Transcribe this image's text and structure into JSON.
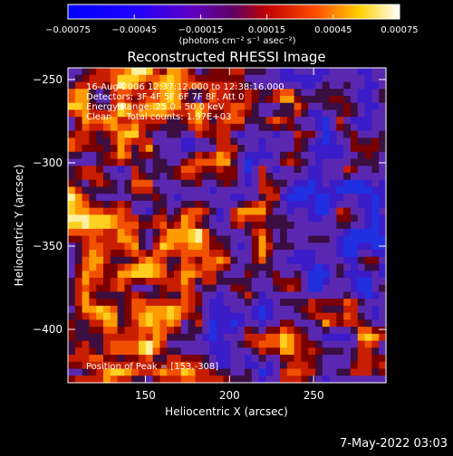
{
  "chart_data": {
    "type": "heatmap",
    "title": "Reconstructed RHESSI Image",
    "xlabel": "Heliocentric X (arcsec)",
    "ylabel": "Heliocentric Y (arcsec)",
    "xlim": [
      104,
      293
    ],
    "ylim": [
      -432,
      -243
    ],
    "xticks": [
      150,
      200,
      250
    ],
    "yticks": [
      -250,
      -300,
      -350,
      -400
    ],
    "colorbar": {
      "ticks": [
        "-0.00075",
        "-0.00045",
        "-0.00015",
        "0.00015",
        "0.00045",
        "0.00075"
      ],
      "range": [
        -0.00075,
        0.00075
      ],
      "unit_label": "(photons cm⁻² s⁻¹ asec⁻²)",
      "colormap": "rainbow-blue-purple-red-yellow-white"
    },
    "annotations": {
      "time": "16-Aug-2006 12:37:12.000 to 12:38:16.000",
      "detectors": "Detectors: 3F 4F 5F 6F 7F 8F, Att 0",
      "energy": "Energy Range: 25.0 - 50.0 keV",
      "clean": "Clean     Total counts: 1.97E+03",
      "peak": "Position of Peak = [153,-308]"
    },
    "peak_position": [
      153,
      -308
    ],
    "total_counts": 1970
  },
  "footer": {
    "date": "7-May-2022 03:03"
  },
  "colors": {
    "background": "#000000",
    "axes": "#ffffff",
    "negative": "#4a1ca8",
    "positive_low": "#c81e00",
    "positive_high": "#ffe45a"
  }
}
